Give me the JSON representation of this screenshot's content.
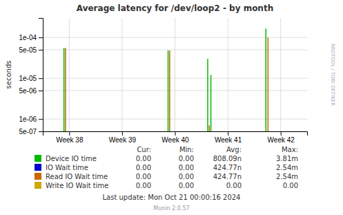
{
  "chart_data": {
    "type": "stem",
    "title": "Average latency for /dev/loop2 - by month",
    "y_label": "seconds",
    "x": [
      0.4,
      0.43,
      2.37,
      2.4,
      3.12,
      3.18,
      3.15,
      4.22,
      4.26
    ],
    "values": [
      5.5e-05,
      5.5e-05,
      4.8e-05,
      4.8e-05,
      3e-05,
      1.2e-05,
      7e-07,
      0.000165,
      0.0001
    ],
    "colors": [
      "#00bb00",
      "#bb6600",
      "#00bb00",
      "#bb6600",
      "#00bb00",
      "#00bb00",
      "#bb6600",
      "#00bb00",
      "#bb6600"
    ],
    "xlim": [
      0,
      5
    ],
    "xticks": [
      {
        "value": 0.5,
        "label": "Week 38"
      },
      {
        "value": 1.5,
        "label": "Week 39"
      },
      {
        "value": 2.5,
        "label": "Week 40"
      },
      {
        "value": 3.5,
        "label": "Week 41"
      },
      {
        "value": 4.5,
        "label": "Week 42"
      }
    ],
    "ylim": [
      5e-07,
      0.0003
    ],
    "yticks": [
      {
        "value": 5e-07,
        "label": "5e-07"
      },
      {
        "value": 1e-06,
        "label": "1e-06"
      },
      {
        "value": 5e-06,
        "label": "5e-06"
      },
      {
        "value": 1e-05,
        "label": "1e-05"
      },
      {
        "value": 5e-05,
        "label": "5e-05"
      },
      {
        "value": 0.0001,
        "label": "1e-04"
      }
    ],
    "log": "y",
    "grid": true,
    "legend": "bottom",
    "legend_entries": [
      {
        "name": "Device IO time",
        "color": "#00bb00"
      },
      {
        "name": "IO Wait time",
        "color": "#0000cc"
      },
      {
        "name": "Read IO Wait time",
        "color": "#cc6600"
      },
      {
        "name": "Write IO Wait time",
        "color": "#ccaa00"
      }
    ],
    "table": {
      "columns": [
        "Cur:",
        "Min:",
        "Avg:",
        "Max:"
      ],
      "rows": [
        [
          "0.00",
          "0.00",
          "808.09n",
          "3.81m"
        ],
        [
          "0.00",
          "0.00",
          "424.77n",
          "2.54m"
        ],
        [
          "0.00",
          "0.00",
          "424.77n",
          "2.54m"
        ],
        [
          "0.00",
          "0.00",
          "0.00",
          "0.00"
        ]
      ]
    },
    "footer": "Last update: Mon Oct 21 00:00:16 2024",
    "version": "Munin 2.0.57",
    "watermark": "RRDTOOL / TOBI OETIKER"
  }
}
